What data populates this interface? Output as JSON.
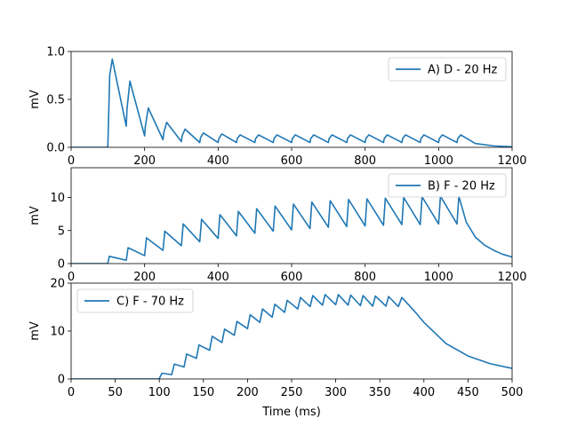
{
  "figure": {
    "line_color": "#1f77b4"
  },
  "chart_data": [
    {
      "type": "line",
      "title": "",
      "xlabel": "",
      "ylabel": "mV",
      "xlim": [
        0,
        1200
      ],
      "ylim": [
        0,
        1.0
      ],
      "xticks": [
        0,
        200,
        400,
        600,
        800,
        1000,
        1200
      ],
      "xtick_labels": [
        "0",
        "200",
        "400",
        "600",
        "800",
        "1000",
        "1200"
      ],
      "yticks": [
        0,
        0.5,
        1.0
      ],
      "ytick_labels": [
        "0.0",
        "0.5",
        "1.0"
      ],
      "legend_placement": "upper-right",
      "series": [
        {
          "name": "A) D - 20 Hz",
          "x": [
            0,
            99,
            100,
            105,
            112,
            150,
            152,
            160,
            200,
            202,
            210,
            250,
            252,
            260,
            300,
            302,
            310,
            350,
            352,
            360,
            400,
            402,
            410,
            450,
            452,
            460,
            500,
            502,
            510,
            550,
            552,
            560,
            600,
            602,
            610,
            650,
            652,
            660,
            700,
            702,
            710,
            750,
            752,
            760,
            800,
            802,
            810,
            850,
            852,
            860,
            900,
            902,
            910,
            950,
            952,
            960,
            1000,
            1002,
            1010,
            1050,
            1052,
            1060,
            1100,
            1150,
            1200
          ],
          "y": [
            0,
            0,
            0.02,
            0.75,
            0.92,
            0.22,
            0.4,
            0.69,
            0.12,
            0.22,
            0.41,
            0.08,
            0.15,
            0.26,
            0.06,
            0.12,
            0.19,
            0.05,
            0.1,
            0.15,
            0.05,
            0.09,
            0.14,
            0.05,
            0.09,
            0.13,
            0.05,
            0.09,
            0.13,
            0.05,
            0.09,
            0.13,
            0.05,
            0.09,
            0.13,
            0.05,
            0.09,
            0.13,
            0.05,
            0.09,
            0.13,
            0.05,
            0.09,
            0.13,
            0.05,
            0.09,
            0.13,
            0.05,
            0.09,
            0.13,
            0.05,
            0.09,
            0.13,
            0.05,
            0.09,
            0.13,
            0.05,
            0.09,
            0.13,
            0.05,
            0.09,
            0.13,
            0.04,
            0.015,
            0.005
          ]
        }
      ]
    },
    {
      "type": "line",
      "title": "",
      "xlabel": "",
      "ylabel": "mV",
      "xlim": [
        0,
        1200
      ],
      "ylim": [
        0,
        14.5
      ],
      "xticks": [
        0,
        200,
        400,
        600,
        800,
        1000,
        1200
      ],
      "xtick_labels": [
        "0",
        "200",
        "400",
        "600",
        "800",
        "1000",
        "1200"
      ],
      "yticks": [
        0,
        5,
        10
      ],
      "ytick_labels": [
        "0",
        "5",
        "10"
      ],
      "legend_placement": "upper-right",
      "series": [
        {
          "name": "B) F - 20 Hz",
          "x": [
            0,
            99,
            100,
            104,
            150,
            155,
            200,
            205,
            250,
            255,
            300,
            305,
            350,
            355,
            400,
            405,
            450,
            455,
            500,
            505,
            550,
            555,
            600,
            605,
            650,
            655,
            700,
            705,
            750,
            755,
            800,
            805,
            850,
            855,
            900,
            905,
            950,
            955,
            1000,
            1005,
            1050,
            1055,
            1075,
            1100,
            1125,
            1150,
            1175,
            1200
          ],
          "y": [
            0,
            0,
            0.1,
            1.1,
            0.5,
            2.4,
            1.2,
            3.9,
            2.0,
            4.9,
            2.7,
            6.0,
            3.3,
            6.7,
            3.8,
            7.4,
            4.2,
            7.9,
            4.6,
            8.3,
            4.9,
            8.7,
            5.1,
            9.0,
            5.3,
            9.3,
            5.5,
            9.5,
            5.6,
            9.7,
            5.7,
            9.8,
            5.8,
            9.9,
            5.9,
            10.0,
            5.9,
            10.1,
            6.0,
            10.2,
            6.0,
            10.2,
            6.3,
            4.0,
            2.8,
            2.0,
            1.4,
            1.0
          ]
        }
      ]
    },
    {
      "type": "line",
      "title": "",
      "xlabel": "Time (ms)",
      "ylabel": "mV",
      "xlim": [
        0,
        500
      ],
      "ylim": [
        0,
        20
      ],
      "xticks": [
        0,
        50,
        100,
        150,
        200,
        250,
        300,
        350,
        400,
        450,
        500
      ],
      "xtick_labels": [
        "0",
        "50",
        "100",
        "150",
        "200",
        "250",
        "300",
        "350",
        "400",
        "450",
        "500"
      ],
      "yticks": [
        0,
        10,
        20
      ],
      "ytick_labels": [
        "0",
        "10",
        "20"
      ],
      "legend_placement": "upper-left",
      "series": [
        {
          "name": "C) F - 70 Hz",
          "x": [
            0,
            99,
            100,
            103,
            114,
            117,
            128,
            131,
            142,
            145,
            157,
            160,
            171,
            174,
            185,
            188,
            200,
            203,
            214,
            217,
            228,
            231,
            242,
            245,
            257,
            260,
            271,
            274,
            285,
            288,
            300,
            303,
            314,
            317,
            328,
            331,
            342,
            345,
            357,
            360,
            371,
            375,
            390,
            400,
            425,
            450,
            475,
            500
          ],
          "y": [
            0,
            0,
            0.1,
            1.2,
            0.9,
            3.1,
            2.5,
            5.2,
            4.3,
            7.1,
            6.0,
            8.9,
            7.6,
            10.4,
            9.1,
            12.0,
            10.5,
            13.4,
            11.8,
            14.6,
            12.9,
            15.6,
            13.9,
            16.4,
            14.6,
            17.0,
            15.1,
            17.4,
            15.4,
            17.6,
            15.5,
            17.6,
            15.4,
            17.5,
            15.3,
            17.4,
            15.2,
            17.3,
            15.2,
            17.2,
            15.1,
            17.0,
            14.0,
            11.8,
            7.4,
            4.8,
            3.2,
            2.2
          ]
        }
      ]
    }
  ]
}
